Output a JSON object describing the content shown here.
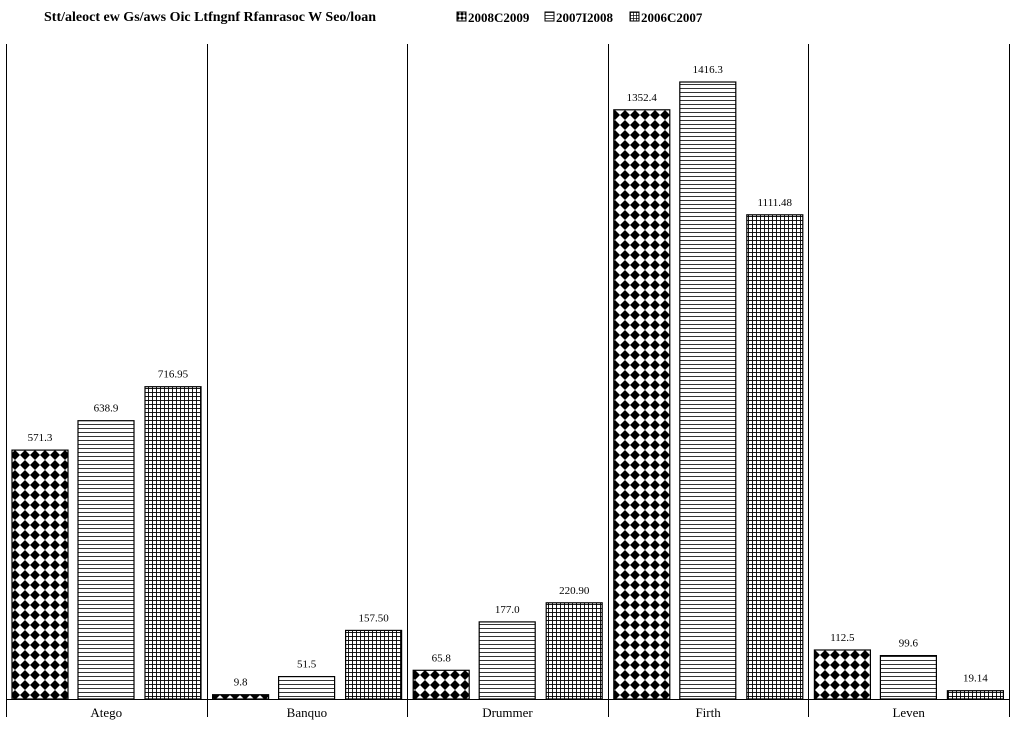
{
  "chart_data": {
    "type": "bar",
    "title": "Stt/aleoct ew Gs/aws Oic Ltfngnf Rfanrasoc W Seo/loan",
    "categories": [
      "Atego",
      "Banquo",
      "Drummer",
      "Firth",
      "Leven"
    ],
    "series": [
      {
        "name": "2008C2009",
        "pattern": "diamond-checker",
        "values": [
          571.3,
          9.8,
          65.8,
          1352.4,
          112.5
        ],
        "labels": [
          "571.3",
          "9.8",
          "65.8",
          "1352.4",
          "112.5"
        ]
      },
      {
        "name": "2007I2008",
        "pattern": "horizontal-lines",
        "values": [
          638.9,
          51.5,
          177.0,
          1416.3,
          99.6
        ],
        "labels": [
          "638.9",
          "51.5",
          "177.0",
          "1416.3",
          "99.6"
        ]
      },
      {
        "name": "2006C2007",
        "pattern": "grid",
        "values": [
          716.95,
          157.5,
          220.9,
          1111.48,
          19.14
        ],
        "labels": [
          "716.95",
          "157.50",
          "220.90",
          "1111.48",
          "19.14"
        ]
      }
    ],
    "ylim": [
      0,
      1470
    ],
    "xlabel": "",
    "ylabel": "",
    "grid": false,
    "legend_position": "top",
    "colors": {
      "bar_stroke": "#000000",
      "pattern": "#000000",
      "background": "#ffffff"
    }
  }
}
